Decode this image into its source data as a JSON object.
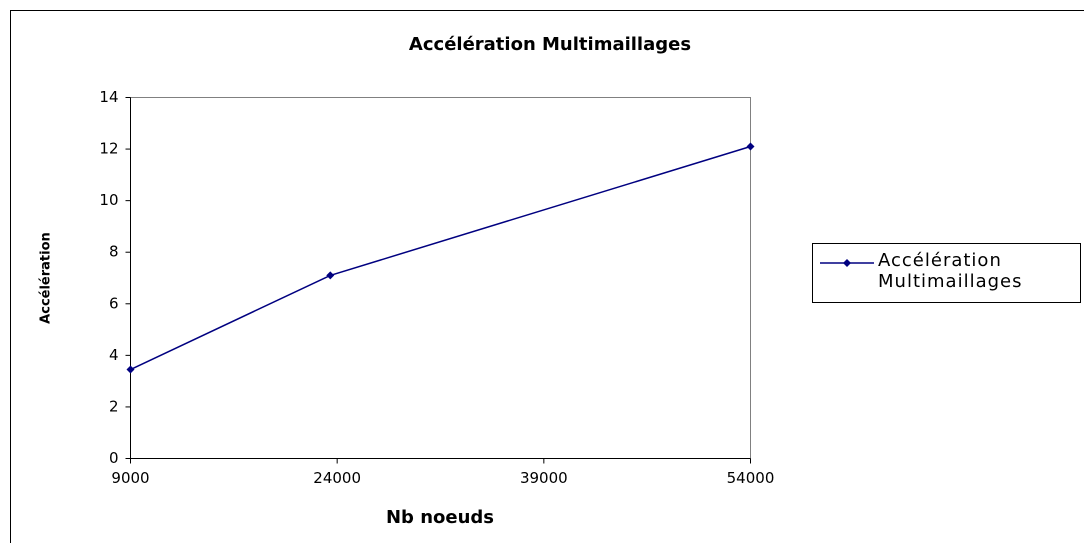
{
  "chart_data": {
    "type": "line",
    "title": "Accélération Multimaillages",
    "x_label": "Nb noeuds",
    "y_label": "Accélération",
    "x": [
      9000,
      23500,
      54000
    ],
    "series": [
      {
        "name": "Accélération Multimaillages",
        "color": "#000080",
        "values": [
          3.45,
          7.1,
          12.1
        ]
      }
    ],
    "xlim": [
      9000,
      54000
    ],
    "xticks": [
      9000,
      24000,
      39000,
      54000
    ],
    "ylim": [
      0,
      14
    ],
    "yticks": [
      0,
      2,
      4,
      6,
      8,
      10,
      12,
      14
    ],
    "grid": false,
    "legend": "right"
  }
}
